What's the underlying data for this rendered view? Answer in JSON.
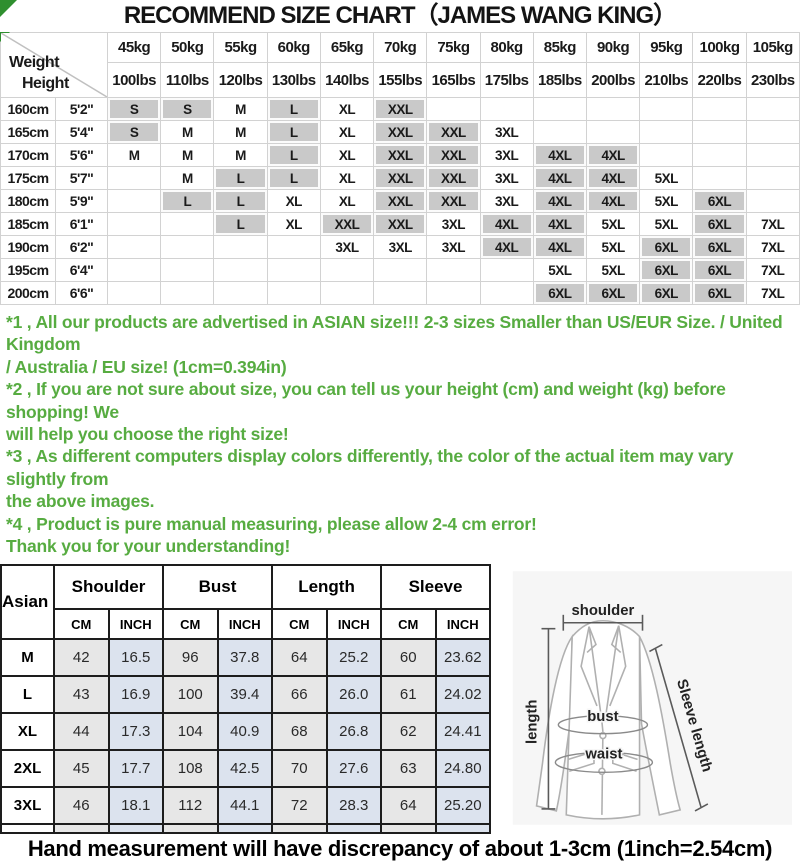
{
  "title": "RECOMMEND SIZE CHART（JAMES WANG KING）",
  "size_chart": {
    "corner_top": "Weight",
    "corner_bottom": "Height",
    "weights_kg": [
      "45kg",
      "50kg",
      "55kg",
      "60kg",
      "65kg",
      "70kg",
      "75kg",
      "80kg",
      "85kg",
      "90kg",
      "95kg",
      "100kg",
      "105kg"
    ],
    "weights_lbs": [
      "100lbs",
      "110lbs",
      "120lbs",
      "130lbs",
      "140lbs",
      "155lbs",
      "165lbs",
      "175lbs",
      "185lbs",
      "200lbs",
      "210lbs",
      "220lbs",
      "230lbs"
    ],
    "gray_sizes": [
      "S",
      "L",
      "XXL",
      "4XL",
      "6XL"
    ],
    "gray_fill": "#c9c9c9",
    "rows": [
      {
        "cm": "160cm",
        "ft": "5'2\"",
        "sizes": [
          "S",
          "S",
          "M",
          "L",
          "XL",
          "XXL",
          "",
          "",
          "",
          "",
          "",
          "",
          ""
        ]
      },
      {
        "cm": "165cm",
        "ft": "5'4\"",
        "sizes": [
          "S",
          "M",
          "M",
          "L",
          "XL",
          "XXL",
          "XXL",
          "3XL",
          "",
          "",
          "",
          "",
          ""
        ]
      },
      {
        "cm": "170cm",
        "ft": "5'6\"",
        "sizes": [
          "M",
          "M",
          "M",
          "L",
          "XL",
          "XXL",
          "XXL",
          "3XL",
          "4XL",
          "4XL",
          "",
          "",
          ""
        ]
      },
      {
        "cm": "175cm",
        "ft": "5'7\"",
        "sizes": [
          "",
          "M",
          "L",
          "L",
          "XL",
          "XXL",
          "XXL",
          "3XL",
          "4XL",
          "4XL",
          "5XL",
          "",
          ""
        ]
      },
      {
        "cm": "180cm",
        "ft": "5'9\"",
        "sizes": [
          "",
          "L",
          "L",
          "XL",
          "XL",
          "XXL",
          "XXL",
          "3XL",
          "4XL",
          "4XL",
          "5XL",
          "6XL",
          ""
        ]
      },
      {
        "cm": "185cm",
        "ft": "6'1\"",
        "sizes": [
          "",
          "",
          "L",
          "XL",
          "XXL",
          "XXL",
          "3XL",
          "4XL",
          "4XL",
          "5XL",
          "5XL",
          "6XL",
          "7XL"
        ]
      },
      {
        "cm": "190cm",
        "ft": "6'2\"",
        "sizes": [
          "",
          "",
          "",
          "",
          "3XL",
          "3XL",
          "3XL",
          "4XL",
          "4XL",
          "5XL",
          "6XL",
          "6XL",
          "7XL"
        ]
      },
      {
        "cm": "195cm",
        "ft": "6'4\"",
        "sizes": [
          "",
          "",
          "",
          "",
          "",
          "",
          "",
          "",
          "5XL",
          "5XL",
          "6XL",
          "6XL",
          "7XL"
        ]
      },
      {
        "cm": "200cm",
        "ft": "6'6\"",
        "sizes": [
          "",
          "",
          "",
          "",
          "",
          "",
          "",
          "",
          "6XL",
          "6XL",
          "6XL",
          "6XL",
          "7XL"
        ]
      }
    ]
  },
  "notes_color": "#57ac41",
  "notes_lines": [
    "*1 , All our products are advertised in ASIAN size!!! 2-3 sizes Smaller than US/EUR Size. / United Kingdom",
    "/ Australia / EU size! (1cm=0.394in)",
    "*2 , If you are not sure about size, you can tell us your height (cm) and weight (kg) before shopping! We",
    "will help you choose the right size!",
    "*3 , As different computers display colors differently, the color of the actual item may vary slightly from",
    "the above images.",
    "*4 , Product is pure manual measuring, please allow 2-4 cm error!",
    "Thank you for your understanding!"
  ],
  "measurement_table": {
    "corner_label": "Asian Size",
    "groups": [
      "Shoulder",
      "Bust",
      "Length",
      "Sleeve"
    ],
    "units": [
      "CM",
      "INCH"
    ],
    "cm_fill": "#e7e7e7",
    "inch_fill": "#dce3ee",
    "rows": [
      {
        "size": "M",
        "values": [
          "42",
          "16.5",
          "96",
          "37.8",
          "64",
          "25.2",
          "60",
          "23.62"
        ]
      },
      {
        "size": "L",
        "values": [
          "43",
          "16.9",
          "100",
          "39.4",
          "66",
          "26.0",
          "61",
          "24.02"
        ]
      },
      {
        "size": "XL",
        "values": [
          "44",
          "17.3",
          "104",
          "40.9",
          "68",
          "26.8",
          "62",
          "24.41"
        ]
      },
      {
        "size": "2XL",
        "values": [
          "45",
          "17.7",
          "108",
          "42.5",
          "70",
          "27.6",
          "63",
          "24.80"
        ]
      },
      {
        "size": "3XL",
        "values": [
          "46",
          "18.1",
          "112",
          "44.1",
          "72",
          "28.3",
          "64",
          "25.20"
        ]
      }
    ]
  },
  "diagram": {
    "labels": {
      "shoulder": "shoulder",
      "length": "length",
      "bust": "bust",
      "waist": "waist",
      "sleeve": "Sleeve length"
    }
  },
  "footer": "Hand measurement will have discrepancy of about 1-3cm (1inch=2.54cm)"
}
